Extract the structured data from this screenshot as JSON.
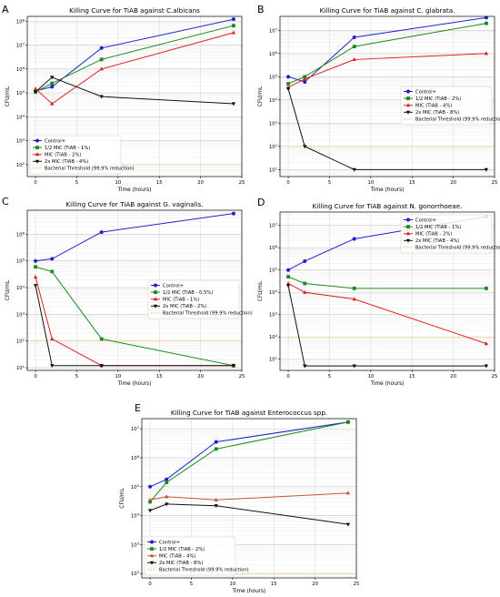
{
  "chart_data": [
    {
      "panel_label": "A",
      "type": "line",
      "title": "Killing Curve for TiAB against C.albicans",
      "xlabel": "Time (hours)",
      "ylabel": "CFU/mL",
      "yscale": "log",
      "xlim": [
        -1,
        25
      ],
      "ylim_exp": [
        1.5,
        8.2
      ],
      "xticks": [
        0,
        5,
        10,
        15,
        20,
        25
      ],
      "yticks_exp": [
        2,
        3,
        4,
        5,
        6,
        7,
        8
      ],
      "grid": true,
      "legend_position": "lower-left",
      "x": [
        0,
        2,
        8,
        24
      ],
      "threshold": {
        "name": "Bacterial Threshold (99.9% reduction)",
        "value": 100,
        "color": "#f5c36b"
      },
      "series": [
        {
          "name": "Control+",
          "color": "#1f1fd1",
          "marker": "circle",
          "values": [
            120000,
            180000,
            7500000,
            120000000
          ]
        },
        {
          "name": "1/2 MIC (TiAB - 1%)",
          "color": "#1a8a1a",
          "marker": "square",
          "values": [
            110000,
            250000,
            2500000,
            65000000
          ]
        },
        {
          "name": "MIC (TiAB - 2%)",
          "color": "#e02020",
          "marker": "triangle-up",
          "values": [
            150000,
            35000,
            1000000,
            33000000
          ]
        },
        {
          "name": "2x MIC (TiAB - 4%)",
          "color": "#111111",
          "marker": "triangle-down",
          "values": [
            110000,
            450000,
            70000,
            35000
          ]
        }
      ]
    },
    {
      "panel_label": "B",
      "type": "line",
      "title": "Killing Curve for TiAB against C. glabrata.",
      "xlabel": "Time (hours)",
      "ylabel": "CFU/mL",
      "yscale": "log",
      "xlim": [
        -1,
        25
      ],
      "ylim_exp": [
        0.7,
        7.6
      ],
      "xticks": [
        0,
        5,
        10,
        15,
        20,
        25
      ],
      "yticks_exp": [
        1,
        2,
        3,
        4,
        5,
        6,
        7
      ],
      "grid": true,
      "legend_position": "center-right",
      "x": [
        0,
        2,
        8,
        24
      ],
      "threshold": {
        "name": "Bacterial Threshold (99.9% reduction)",
        "value": 100,
        "color": "#f5c36b"
      },
      "series": [
        {
          "name": "Control+",
          "color": "#1f1fd1",
          "marker": "circle",
          "values": [
            100000,
            60000,
            5000000,
            35000000
          ]
        },
        {
          "name": "1/2 MIC (TiAB - 2%)",
          "color": "#1a8a1a",
          "marker": "square",
          "values": [
            50000,
            100000,
            2000000,
            20000000
          ]
        },
        {
          "name": "MIC (TiAB - 4%)",
          "color": "#e02020",
          "marker": "triangle-up",
          "values": [
            35000,
            80000,
            550000,
            1000000
          ]
        },
        {
          "name": "2x MIC (TiAB - 8%)",
          "color": "#111111",
          "marker": "triangle-down",
          "values": [
            30000,
            100,
            10,
            10
          ]
        }
      ]
    },
    {
      "panel_label": "C",
      "type": "line",
      "title": "Killing Curve for TiAB against G. vaginalis.",
      "xlabel": "Time (hours)",
      "ylabel": "CFU/mL",
      "yscale": "log",
      "xlim": [
        -1,
        25
      ],
      "ylim_exp": [
        0.9,
        6.9
      ],
      "xticks": [
        0,
        5,
        10,
        15,
        20,
        25
      ],
      "yticks_exp": [
        1,
        2,
        3,
        4,
        5,
        6
      ],
      "grid": true,
      "legend_position": "center-right",
      "x": [
        0,
        2,
        8,
        24
      ],
      "threshold": {
        "name": "Bacterial Threshold (99.9% reduction)",
        "value": 100,
        "color": "#f5c36b"
      },
      "series": [
        {
          "name": "Control+",
          "color": "#1f1fd1",
          "marker": "circle",
          "values": [
            100000,
            120000,
            1200000,
            6000000
          ]
        },
        {
          "name": "1/2 MIC (TiAB - 0.5%)",
          "color": "#1a8a1a",
          "marker": "square",
          "values": [
            60000,
            40000,
            120,
            12
          ]
        },
        {
          "name": "MIC (TiAB - 1%)",
          "color": "#e02020",
          "marker": "triangle-up",
          "values": [
            25000,
            120,
            12,
            12
          ]
        },
        {
          "name": "2x MIC (TiAB - 2%)",
          "color": "#111111",
          "marker": "triangle-down",
          "values": [
            12000,
            12,
            12,
            12
          ]
        }
      ]
    },
    {
      "panel_label": "D",
      "type": "line",
      "title": "Killing Curve for TiAB against N. gonorrhoeae.",
      "xlabel": "Time (hours)",
      "ylabel": "CFU/mL",
      "yscale": "log",
      "xlim": [
        -1,
        25
      ],
      "ylim_exp": [
        0.5,
        7.6
      ],
      "xticks": [
        0,
        5,
        10,
        15,
        20,
        25
      ],
      "yticks_exp": [
        1,
        2,
        3,
        4,
        5,
        6,
        7
      ],
      "grid": true,
      "legend_position": "top-right",
      "x": [
        0,
        2,
        8,
        24
      ],
      "threshold": {
        "name": "Bacterial Threshold (99.9% reduction)",
        "value": 100,
        "color": "#f5c36b"
      },
      "series": [
        {
          "name": "Control+",
          "color": "#1f1fd1",
          "marker": "circle",
          "values": [
            100000,
            250000,
            2500000,
            25000000
          ]
        },
        {
          "name": "1/2 MIC (TiAB - 1%)",
          "color": "#1a8a1a",
          "marker": "square",
          "values": [
            50000,
            25000,
            15000,
            15000
          ]
        },
        {
          "name": "MIC (TiAB - 2%)",
          "color": "#e02020",
          "marker": "triangle-up",
          "values": [
            25000,
            10000,
            5000,
            50
          ]
        },
        {
          "name": "2x MIC (TiAB - 4%)",
          "color": "#111111",
          "marker": "triangle-down",
          "values": [
            20000,
            5,
            5,
            5
          ]
        }
      ]
    },
    {
      "panel_label": "E",
      "type": "line",
      "title": "Killing Curve for TiAB against Enterococcus spp.",
      "xlabel": "Time (hours)",
      "ylabel": "CFU/mL",
      "yscale": "log",
      "xlim": [
        -1,
        25
      ],
      "ylim_exp": [
        1.85,
        7.35
      ],
      "xticks": [
        0,
        5,
        10,
        15,
        20,
        25
      ],
      "yticks_exp": [
        2,
        3,
        4,
        5,
        6,
        7
      ],
      "grid": true,
      "legend_position": "lower-left",
      "x": [
        0,
        2,
        8,
        24
      ],
      "threshold": {
        "name": "Bacterial Threshold (99.9% reduction)",
        "value": 100,
        "color": "#f5c36b"
      },
      "series": [
        {
          "name": "Control+",
          "color": "#1f1fd1",
          "marker": "circle",
          "values": [
            100000,
            180000,
            3500000,
            17000000
          ]
        },
        {
          "name": "1/2 MIC (TiAB - 2%)",
          "color": "#1a8a1a",
          "marker": "square",
          "values": [
            30000,
            140000,
            2000000,
            17000000
          ]
        },
        {
          "name": "MIC (TiAB - 4%)",
          "color": "#c0552a",
          "marker": "triangle-up",
          "values": [
            35000,
            45000,
            35000,
            60000
          ]
        },
        {
          "name": "2x MIC (TiAB - 8%)",
          "color": "#111111",
          "marker": "triangle-down",
          "values": [
            15000,
            25000,
            22000,
            5000
          ]
        }
      ]
    }
  ]
}
